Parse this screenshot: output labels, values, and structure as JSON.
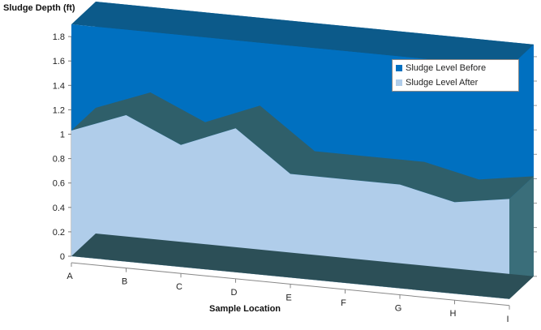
{
  "chart_data": {
    "type": "area",
    "ylabel": "Sludge Depth (ft)",
    "xlabel": "Sample Location",
    "categories": [
      "A",
      "B",
      "C",
      "D",
      "E",
      "F",
      "G",
      "H",
      "I"
    ],
    "ylim": [
      0,
      1.8
    ],
    "yticks": [
      "0",
      "0.2",
      "0.4",
      "0.6",
      "0.8",
      "1",
      "1.2",
      "1.4",
      "1.6",
      "1.8"
    ],
    "grid": false,
    "legend_position": "top-right",
    "series": [
      {
        "name": "Sludge Level Before",
        "color": "#0070C0",
        "values": [
          1.9,
          1.9,
          1.9,
          1.9,
          1.9,
          1.9,
          1.9,
          1.9,
          1.9
        ]
      },
      {
        "name": "Sludge Level After",
        "color": "#B0CDEA",
        "values": [
          1.03,
          1.2,
          1.0,
          1.18,
          0.85,
          0.85,
          0.85,
          0.75,
          0.82
        ]
      }
    ]
  }
}
